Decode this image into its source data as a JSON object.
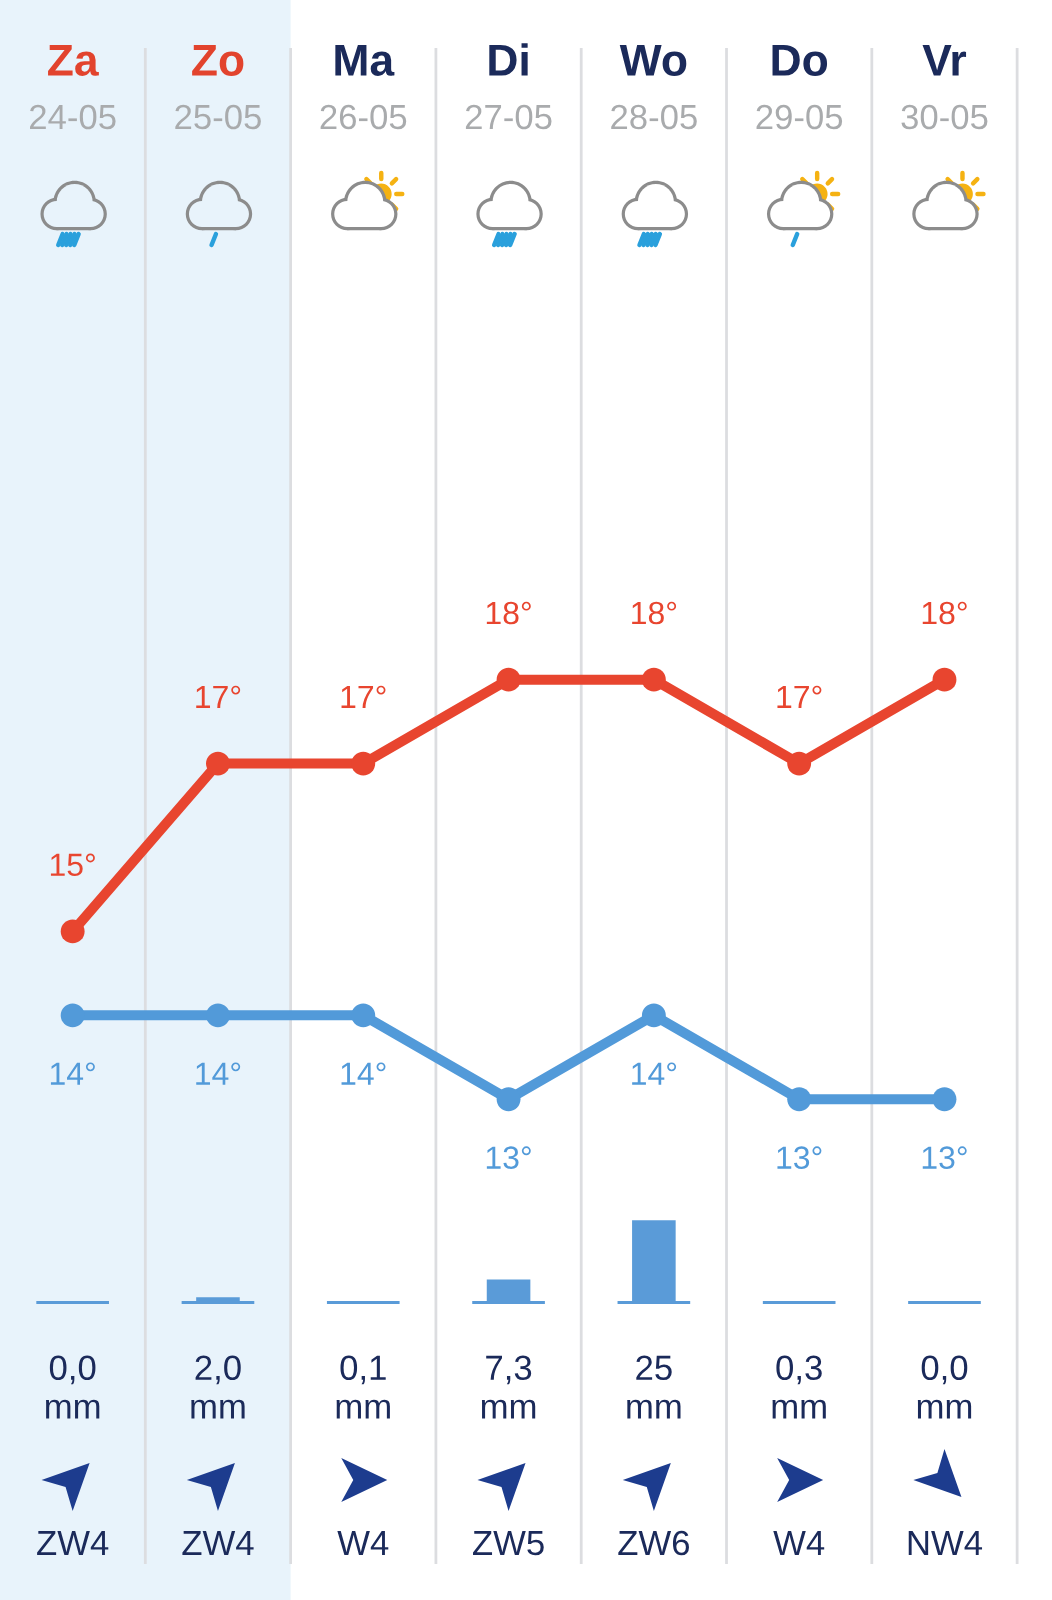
{
  "chart_data": [
    {
      "type": "line",
      "categories": [
        "Za\n24-05",
        "Zo\n25-05",
        "Ma\n26-05",
        "Di\n27-05",
        "Wo\n28-05",
        "Do\n29-05",
        "Vr\n30-05"
      ],
      "series": [
        {
          "color": "#e8452f",
          "values": [
            15,
            17,
            17,
            18,
            18,
            17,
            18
          ],
          "value_labels": [
            "15°",
            "17°",
            "17°",
            "18°",
            "18°",
            "17°",
            "18°"
          ]
        },
        {
          "color": "#529ad9",
          "values": [
            14,
            14,
            14,
            13,
            14,
            13,
            13
          ],
          "value_labels": [
            "14°",
            "14°",
            "14°",
            "13°",
            "14°",
            "13°",
            "13°"
          ]
        }
      ],
      "marker": "circle",
      "grid": "x",
      "tick_labels": "x",
      "bands": [
        {
          "axis": "x",
          "from": "Za\n24-05",
          "to": "Zo\n25-05",
          "color": "#e8f3fb"
        }
      ]
    },
    {
      "type": "bar",
      "categories": [
        null,
        null,
        null,
        null,
        null,
        null,
        null
      ],
      "series": [
        {
          "color": "#5a9bd8",
          "values": [
            0.0,
            2.0,
            0.1,
            7.3,
            25,
            0.3,
            0.0
          ],
          "value_labels": [
            "0,0\nmm",
            "2,0\nmm",
            "0,1\nmm",
            "7,3\nmm",
            "25\nmm",
            "0,3\nmm",
            "0,0\nmm"
          ]
        }
      ],
      "tick_labels": false
    },
    {
      "type": "other",
      "annotations": [
        "ZW4",
        "ZW4",
        "W4",
        "ZW5",
        "ZW6",
        "W4",
        "NW4"
      ]
    }
  ]
}
